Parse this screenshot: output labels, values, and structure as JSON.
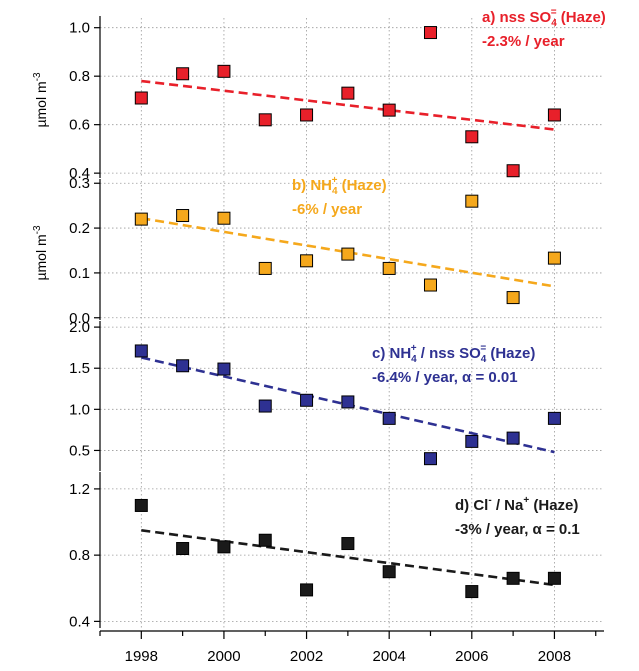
{
  "chart_data": {
    "type": "scatter",
    "xlim": [
      1997.0,
      2009.2
    ],
    "x_ticks": [
      1998,
      2000,
      2002,
      2004,
      2006,
      2008
    ],
    "x": [
      1998,
      1999,
      2000,
      2001,
      2002,
      2003,
      2004,
      2005,
      2006,
      2007,
      2008
    ],
    "grid": true,
    "panels": [
      {
        "id": "a",
        "ylabel": "µmol m",
        "ylabel_sup": "-3",
        "ylim": [
          0.38,
          1.04
        ],
        "y_ticks": [
          "0.4",
          "0.6",
          "0.8",
          "1.0"
        ],
        "color": "#e8202a",
        "values": [
          0.71,
          0.81,
          0.82,
          0.62,
          0.64,
          0.73,
          0.66,
          0.98,
          0.55,
          0.41,
          0.64
        ],
        "trend": [
          0.78,
          0.58
        ],
        "annotation": {
          "line1_pre": "a) nss SO",
          "line1_sub": "4",
          "line1_sup": "=",
          "line1_post": " (Haze)",
          "line2": "-2.3% / year"
        }
      },
      {
        "id": "b",
        "ylabel": "µmol m",
        "ylabel_sup": "-3",
        "ylim": [
          -0.005,
          0.305
        ],
        "y_ticks": [
          "0.0",
          "0.1",
          "0.2",
          "0.3"
        ],
        "color": "#f5a81c",
        "values": [
          0.22,
          0.228,
          0.222,
          0.11,
          0.127,
          0.142,
          0.11,
          0.073,
          0.26,
          0.045,
          0.133
        ],
        "trend": [
          0.222,
          0.07
        ],
        "annotation": {
          "line1_pre": "b) NH",
          "line1_sub": "4",
          "line1_sup": "+",
          "line1_post": " (Haze)",
          "line2": "-6% / year"
        }
      },
      {
        "id": "c",
        "ylabel": "",
        "ylim": [
          0.25,
          2.05
        ],
        "y_ticks": [
          "0.5",
          "1.0",
          "1.5",
          "2.0"
        ],
        "color": "#2e3192",
        "values": [
          1.71,
          1.53,
          1.49,
          1.04,
          1.11,
          1.09,
          0.89,
          0.4,
          0.61,
          0.65,
          0.89
        ],
        "trend": [
          1.63,
          0.48
        ],
        "annotation": {
          "line1_pre": "c) NH",
          "line1_sub": "4",
          "line1_sup": "+",
          "line1_post": " / nss SO",
          "line1_sub2": "4",
          "line1_sup2": "=",
          "line1_post2": " (Haze)",
          "line2": "-6.4% / year, α = 0.01"
        }
      },
      {
        "id": "d",
        "ylabel": "",
        "ylim": [
          0.36,
          1.29
        ],
        "y_ticks": [
          "0.4",
          "0.8",
          "1.2"
        ],
        "color": "#1a1a1a",
        "values": [
          1.1,
          0.84,
          0.85,
          0.89,
          0.59,
          0.87,
          0.7,
          null,
          0.58,
          0.66,
          0.66
        ],
        "trend": [
          0.95,
          0.62
        ],
        "annotation": {
          "line1_pre": "d) Cl",
          "line1_sup": "-",
          "line1_post": " / Na",
          "line1_sup2": "+",
          "line1_post2": " (Haze)",
          "line2": "-3% / year, α = 0.1"
        }
      }
    ]
  }
}
